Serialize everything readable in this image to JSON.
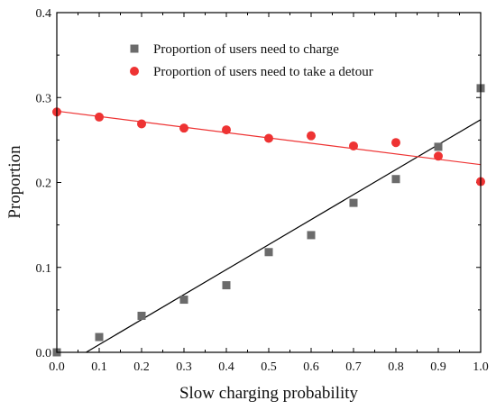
{
  "chart_data": {
    "type": "scatter",
    "title": "",
    "xlabel": "Slow charging probability",
    "ylabel": "Proportion",
    "xlim": [
      0.0,
      1.0
    ],
    "ylim": [
      0.0,
      0.4
    ],
    "xticks": [
      "0.0",
      "0.1",
      "0.2",
      "0.3",
      "0.4",
      "0.5",
      "0.6",
      "0.7",
      "0.8",
      "0.9",
      "1.0"
    ],
    "yticks": [
      "0.0",
      "0.1",
      "0.2",
      "0.3",
      "0.4"
    ],
    "grid": false,
    "legend_position": "top-right",
    "series": [
      {
        "name": "Proportion of users need to charge",
        "marker": "square",
        "color": "#6b6b6b",
        "x": [
          0.0,
          0.1,
          0.2,
          0.3,
          0.4,
          0.5,
          0.6,
          0.7,
          0.8,
          0.9,
          1.0
        ],
        "y": [
          0.0,
          0.018,
          0.043,
          0.062,
          0.079,
          0.118,
          0.138,
          0.176,
          0.204,
          0.242,
          0.311
        ],
        "fit_line": {
          "color": "#000000",
          "x": [
            0.069,
            1.0
          ],
          "y": [
            0.0,
            0.274
          ]
        }
      },
      {
        "name": "Proportion of users need to take a detour",
        "marker": "circle",
        "color": "#ee3333",
        "x": [
          0.0,
          0.1,
          0.2,
          0.3,
          0.4,
          0.5,
          0.6,
          0.7,
          0.8,
          0.9,
          1.0
        ],
        "y": [
          0.283,
          0.277,
          0.269,
          0.264,
          0.262,
          0.252,
          0.255,
          0.243,
          0.247,
          0.231,
          0.201
        ],
        "fit_line": {
          "color": "#ee3333",
          "x": [
            0.0,
            1.0
          ],
          "y": [
            0.284,
            0.221
          ]
        }
      }
    ]
  }
}
